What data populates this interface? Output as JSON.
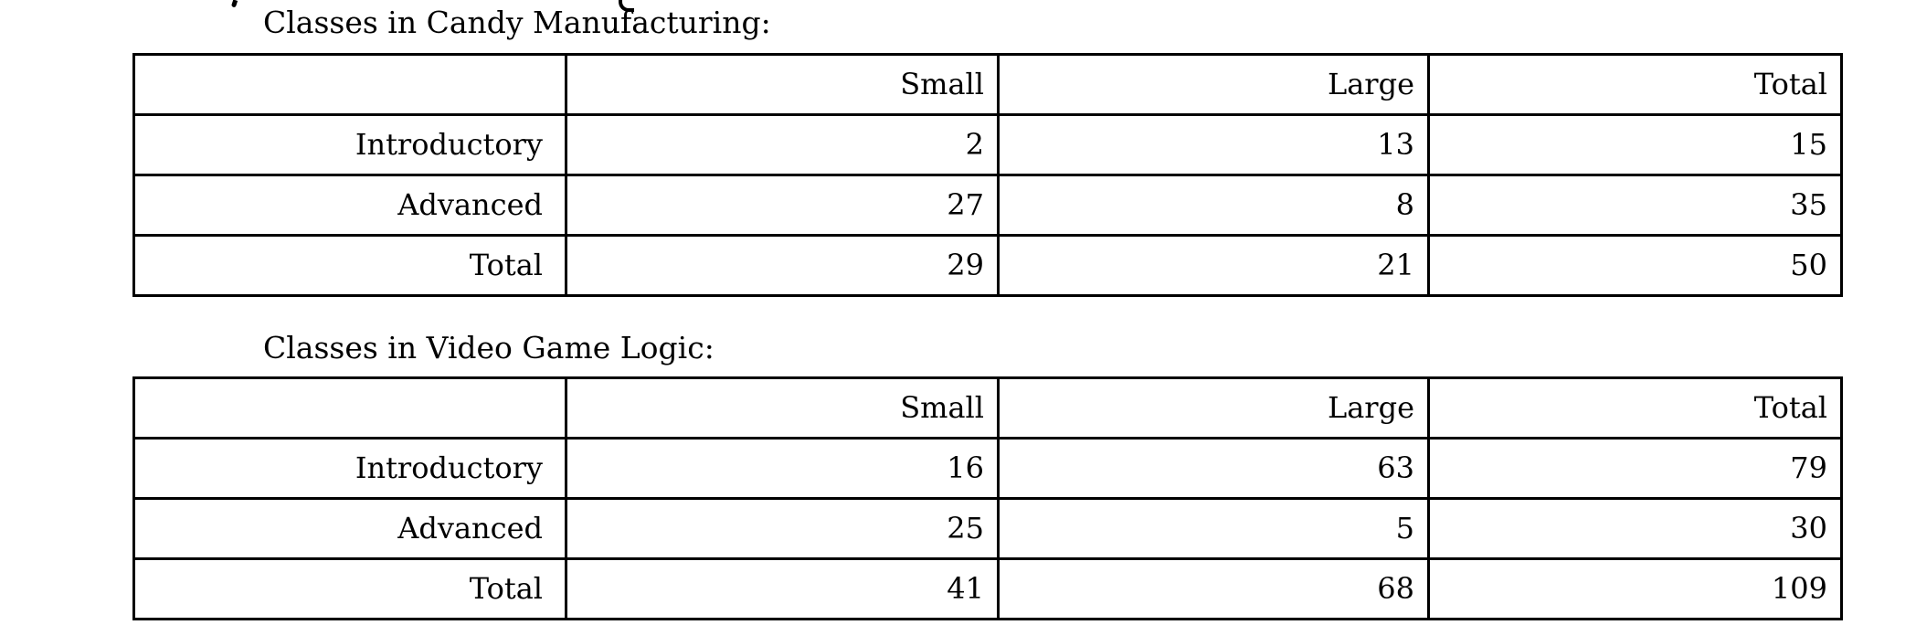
{
  "page": {
    "background": "#ffffff",
    "text_color": "#000000",
    "border_color": "#000000"
  },
  "tables": [
    {
      "title": "Classes in Candy Manufacturing:",
      "columns": [
        "Small",
        "Large",
        "Total"
      ],
      "rows": [
        {
          "label": "Introductory",
          "values": [
            "2",
            "13",
            "15"
          ]
        },
        {
          "label": "Advanced",
          "values": [
            "27",
            "8",
            "35"
          ]
        },
        {
          "label": "Total",
          "values": [
            "29",
            "21",
            "50"
          ]
        }
      ]
    },
    {
      "title": "Classes in Video Game Logic:",
      "columns": [
        "Small",
        "Large",
        "Total"
      ],
      "rows": [
        {
          "label": "Introductory",
          "values": [
            "16",
            "63",
            "79"
          ]
        },
        {
          "label": "Advanced",
          "values": [
            "25",
            "5",
            "30"
          ]
        },
        {
          "label": "Total",
          "values": [
            "41",
            "68",
            "109"
          ]
        }
      ]
    }
  ]
}
